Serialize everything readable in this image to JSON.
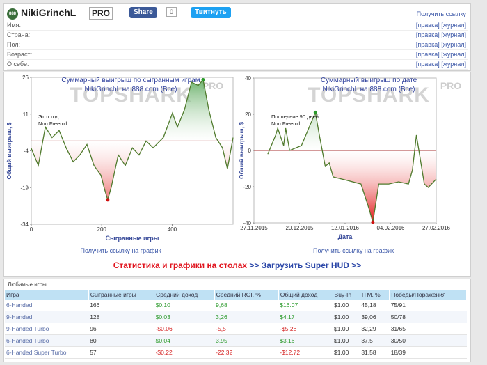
{
  "header": {
    "avatar": "888",
    "name": "NikiGrinchL",
    "badge": "PRO",
    "share": "Share",
    "share_count": "0",
    "tweet": "Твитнуть",
    "get_link": "Получить ссылку"
  },
  "profile": {
    "rows": [
      {
        "label": "Имя:",
        "edit": "[правка]",
        "log": "[журнал]"
      },
      {
        "label": "Страна:",
        "edit": "[правка]",
        "log": "[журнал]"
      },
      {
        "label": "Пол:",
        "edit": "[правка]",
        "log": "[журнал]"
      },
      {
        "label": "Возраст:",
        "edit": "[правка]",
        "log": "[журнал]"
      },
      {
        "label": "О себе:",
        "edit": "[правка]",
        "log": "[журнал]"
      }
    ]
  },
  "chart_data": [
    {
      "type": "line",
      "title": "Суммарный выигрыш по сыгранным играм",
      "subtitle": "NikiGrinchL на 888.com (Все)",
      "watermark": "TOPSHARK",
      "watermark_badge": "PRO",
      "annotations": [
        "Этот год",
        "Non Freeroll"
      ],
      "x_label": "Сыгранные игры",
      "y_label": "Общий выигрыш, $",
      "x": [
        0,
        20,
        40,
        59,
        79,
        99,
        119,
        138,
        158,
        178,
        198,
        208,
        217,
        227,
        247,
        267,
        287,
        306,
        326,
        346,
        375,
        401,
        415,
        435,
        455,
        474,
        488,
        504,
        524,
        543,
        557,
        573
      ],
      "values": [
        -3,
        -10,
        5.7,
        1.4,
        4.3,
        -2.8,
        -8.5,
        -5.7,
        -1.4,
        -10,
        -14,
        -19.7,
        -24,
        -18.9,
        -5.7,
        -10,
        -2.8,
        -5.7,
        0,
        -2.8,
        1.4,
        11.4,
        5.7,
        12.8,
        24,
        22.7,
        25,
        12.8,
        1.4,
        -2.8,
        -11.4,
        1.4
      ],
      "color": "#4f7a2c",
      "xlim": [
        0,
        573
      ],
      "ylim": [
        -34,
        26
      ],
      "xticks": [
        0,
        200,
        400
      ],
      "yticks": [
        -34,
        -19,
        -4,
        11,
        26
      ],
      "reference_line": 0,
      "extreme_markers": true,
      "link": "Получить ссылку на график"
    },
    {
      "type": "line",
      "title": "Суммарный выигрыш по дате",
      "subtitle": "NikiGrinchL на 888.com (Все)",
      "watermark": "TOPSHARK",
      "watermark_badge": "PRO",
      "annotations": [
        "Последние 90 дней",
        "Non Freeroll"
      ],
      "x_label": "Дата",
      "y_label": "Общий выигрыш, $",
      "x": [
        "2015-12-04",
        "2015-12-08",
        "2015-12-09",
        "2015-12-12",
        "2015-12-13",
        "2015-12-15",
        "2015-12-21",
        "2015-12-28",
        "2015-12-30",
        "2016-01-02",
        "2016-01-04",
        "2016-01-06",
        "2016-01-13",
        "2016-01-20",
        "2016-01-24",
        "2016-01-26",
        "2016-01-29",
        "2016-02-03",
        "2016-02-08",
        "2016-02-13",
        "2016-02-15",
        "2016-02-17",
        "2016-02-19",
        "2016-02-21",
        "2016-02-23",
        "2016-02-27"
      ],
      "values": [
        -2,
        8.5,
        12.3,
        2.7,
        12.3,
        0,
        2.7,
        21,
        8.5,
        -8.8,
        -6.9,
        -14.6,
        -16.5,
        -18.5,
        -31.9,
        -39.6,
        -18.5,
        -18.5,
        -17.3,
        -18.5,
        -10.8,
        8.5,
        -5,
        -18.5,
        -20.4,
        -15.8
      ],
      "color": "#4f7a2c",
      "xlim": [
        "2015-11-27",
        "2016-02-27"
      ],
      "ylim": [
        -40,
        40
      ],
      "xticks": [
        {
          "value": "2015-11-27",
          "label": "27.11.2015"
        },
        {
          "value": "2015-12-20",
          "label": "20.12.2015"
        },
        {
          "value": "2016-01-12",
          "label": "12.01.2016"
        },
        {
          "value": "2016-02-04",
          "label": "04.02.2016"
        },
        {
          "value": "2016-02-27",
          "label": "27.02.2016"
        }
      ],
      "yticks": [
        -40,
        -20,
        0,
        20,
        40
      ],
      "reference_line": 0,
      "extreme_markers": true,
      "link": "Получить ссылку на график"
    }
  ],
  "banner": {
    "text": "Статистика и графики на столах",
    "link": " >> Загрузить Super HUD >>"
  },
  "table": {
    "title": "Любимые игры",
    "header": [
      "Игра",
      "Сыгранные игры",
      "Средний доход",
      "Средний ROI, %",
      "Общий доход",
      "Buy-In",
      "ITM, %",
      "Победы/Поражения"
    ],
    "rows": [
      [
        "6-Handed",
        "166",
        "$0.10",
        "9,68",
        "$16.07",
        "$1.00",
        "45,18",
        "75/91"
      ],
      [
        "9-Handed",
        "128",
        "$0.03",
        "3,26",
        "$4.17",
        "$1.00",
        "39,06",
        "50/78"
      ],
      [
        "9-Handed Turbo",
        "96",
        "-$0.06",
        "-5,5",
        "-$5.28",
        "$1.00",
        "32,29",
        "31/65"
      ],
      [
        "6-Handed Turbo",
        "80",
        "$0.04",
        "3,95",
        "$3.16",
        "$1.00",
        "37,5",
        "30/50"
      ],
      [
        "6-Handed Super Turbo",
        "57",
        "-$0.22",
        "-22,32",
        "-$12.72",
        "$1.00",
        "31,58",
        "18/39"
      ]
    ]
  }
}
